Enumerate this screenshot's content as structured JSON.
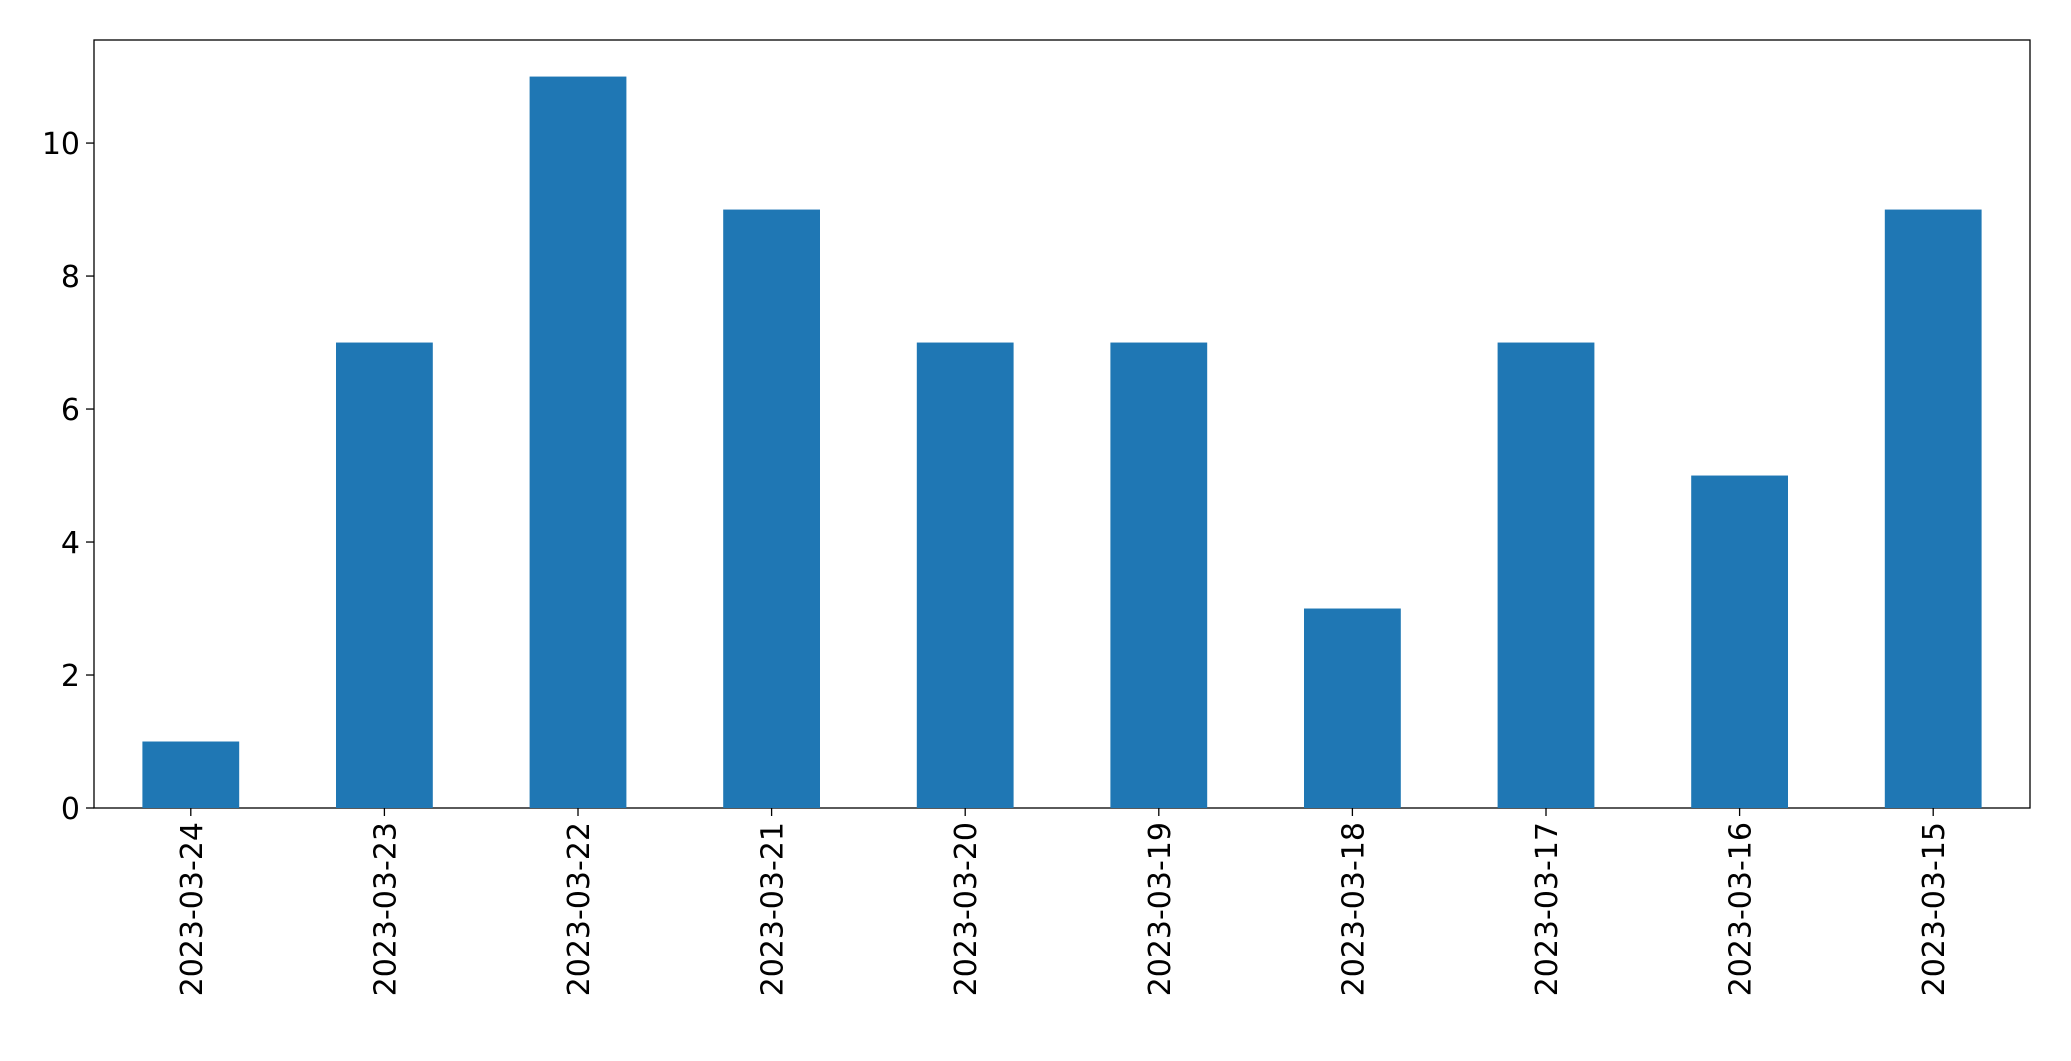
{
  "chart_data": {
    "type": "bar",
    "categories": [
      "2023-03-24",
      "2023-03-23",
      "2023-03-22",
      "2023-03-21",
      "2023-03-20",
      "2023-03-19",
      "2023-03-18",
      "2023-03-17",
      "2023-03-16",
      "2023-03-15"
    ],
    "values": [
      1,
      7,
      11,
      9,
      7,
      7,
      3,
      7,
      5,
      9
    ],
    "color": "#1f77b4",
    "ylim": [
      0,
      11.55
    ],
    "yticks": [
      0,
      2,
      4,
      6,
      8,
      10
    ],
    "grid": false
  }
}
